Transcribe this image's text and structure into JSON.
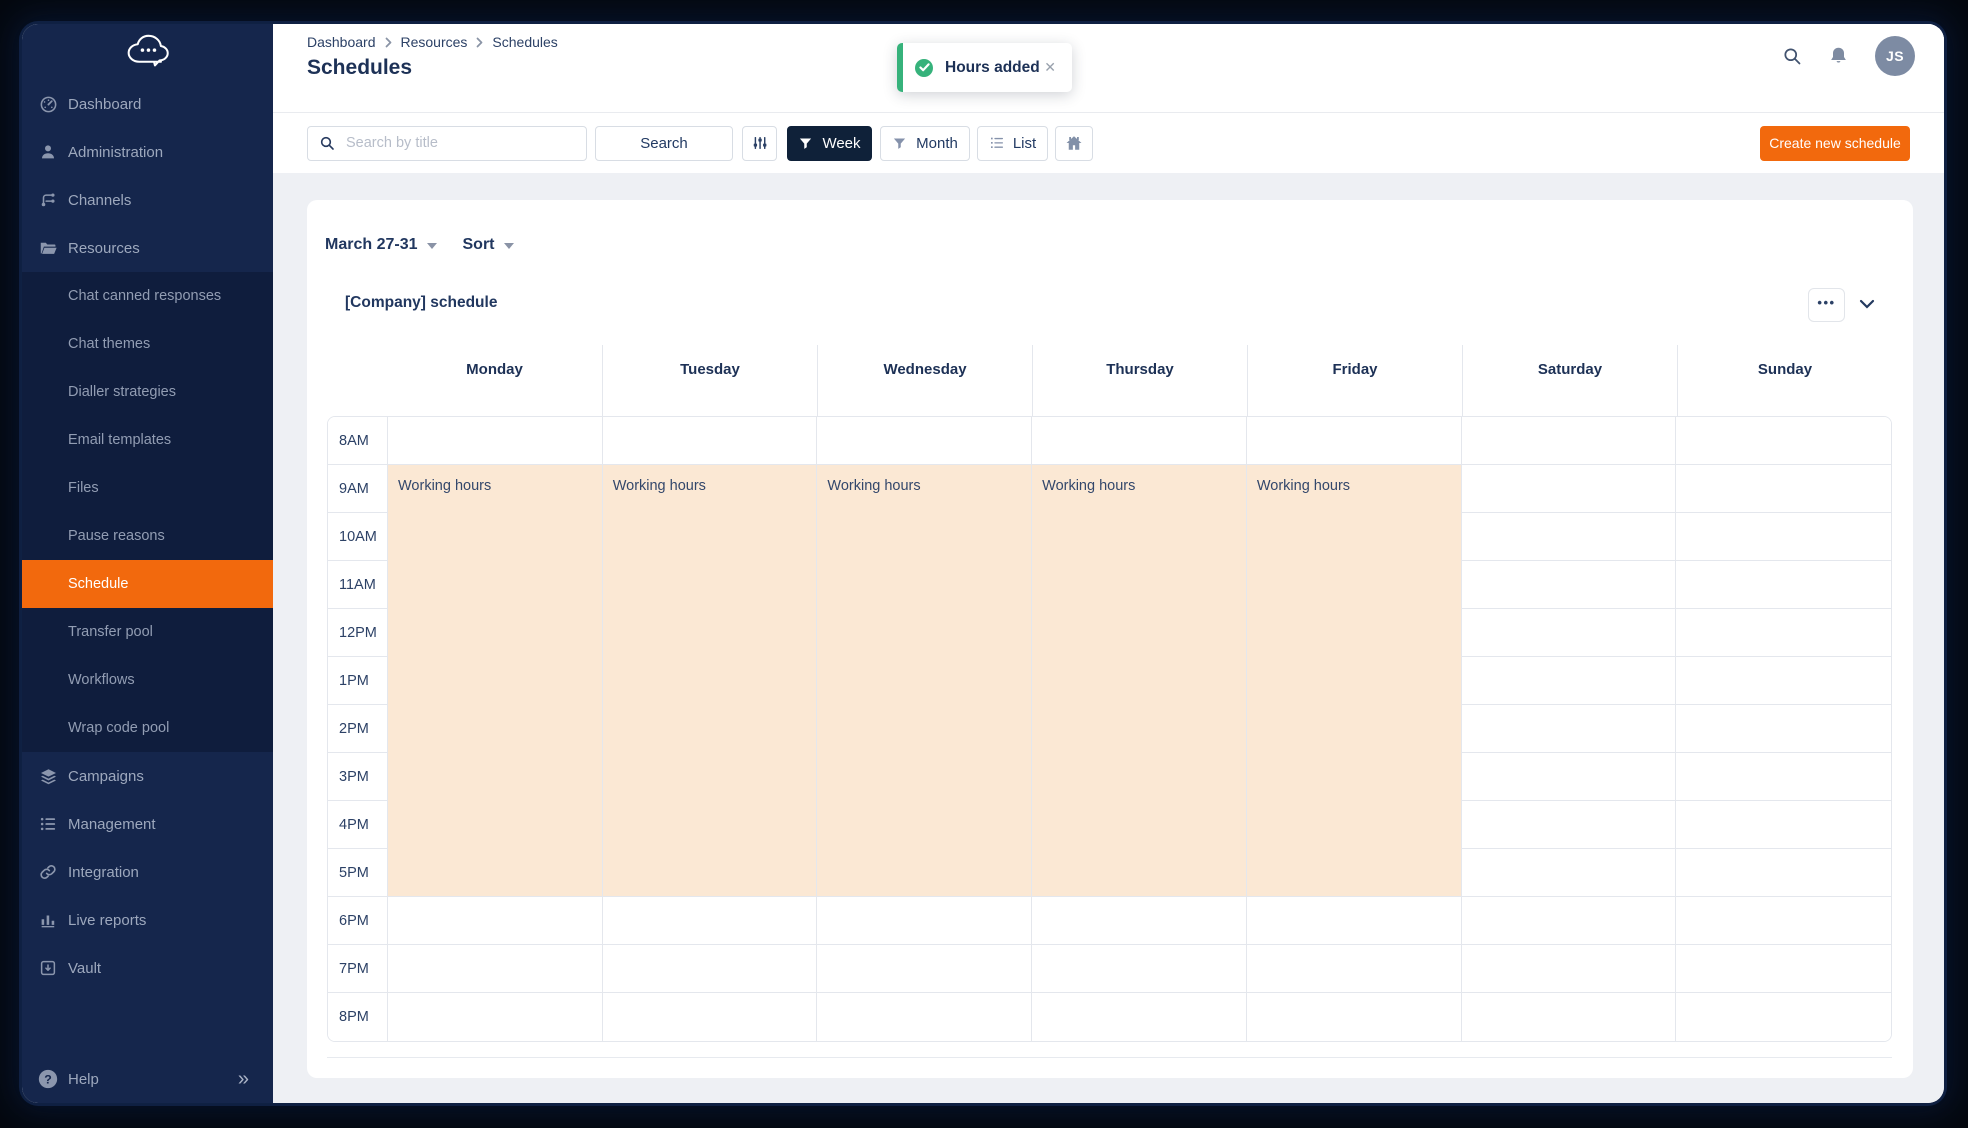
{
  "sidebar": {
    "items": [
      {
        "label": "Dashboard",
        "icon": "dashboard"
      },
      {
        "label": "Administration",
        "icon": "administration"
      },
      {
        "label": "Channels",
        "icon": "channels"
      },
      {
        "label": "Resources",
        "icon": "resources",
        "expanded": true,
        "children": [
          "Chat canned responses",
          "Chat themes",
          "Dialler strategies",
          "Email templates",
          "Files",
          "Pause reasons",
          "Schedule",
          "Transfer pool",
          "Workflows",
          "Wrap code pool"
        ],
        "selected_child": "Schedule"
      },
      {
        "label": "Campaigns",
        "icon": "campaigns"
      },
      {
        "label": "Management",
        "icon": "management"
      },
      {
        "label": "Integration",
        "icon": "integration"
      },
      {
        "label": "Live reports",
        "icon": "live-reports"
      },
      {
        "label": "Vault",
        "icon": "vault"
      }
    ],
    "help_label": "Help"
  },
  "header": {
    "breadcrumb": [
      "Dashboard",
      "Resources",
      "Schedules"
    ],
    "title": "Schedules",
    "avatar_initials": "JS"
  },
  "toast": {
    "message": "Hours added"
  },
  "toolbar": {
    "search_placeholder": "Search by title",
    "search_button": "Search",
    "week_label": "Week",
    "month_label": "Month",
    "list_label": "List",
    "create_button": "Create new schedule"
  },
  "calendar": {
    "period_label": "March 27-31",
    "sort_label": "Sort",
    "schedule_title": "[Company] schedule",
    "days": [
      "Monday",
      "Tuesday",
      "Wednesday",
      "Thursday",
      "Friday",
      "Saturday",
      "Sunday"
    ],
    "hours": [
      "8AM",
      "9AM",
      "10AM",
      "11AM",
      "12PM",
      "1PM",
      "2PM",
      "3PM",
      "4PM",
      "5PM",
      "6PM",
      "7PM",
      "8PM"
    ],
    "events": [
      {
        "day": "Monday",
        "label": "Working hours",
        "start": "9AM",
        "end": "6PM"
      },
      {
        "day": "Tuesday",
        "label": "Working hours",
        "start": "9AM",
        "end": "6PM"
      },
      {
        "day": "Wednesday",
        "label": "Working hours",
        "start": "9AM",
        "end": "6PM"
      },
      {
        "day": "Thursday",
        "label": "Working hours",
        "start": "9AM",
        "end": "6PM"
      },
      {
        "day": "Friday",
        "label": "Working hours",
        "start": "9AM",
        "end": "6PM"
      }
    ]
  },
  "colors": {
    "accent_orange": "#F2690D",
    "sidebar_navy": "#15264C",
    "submenu_navy": "#0f1d3d",
    "toast_green": "#36b27b",
    "event_fill": "#FBE8D4",
    "heading_navy": "#1d3156"
  }
}
